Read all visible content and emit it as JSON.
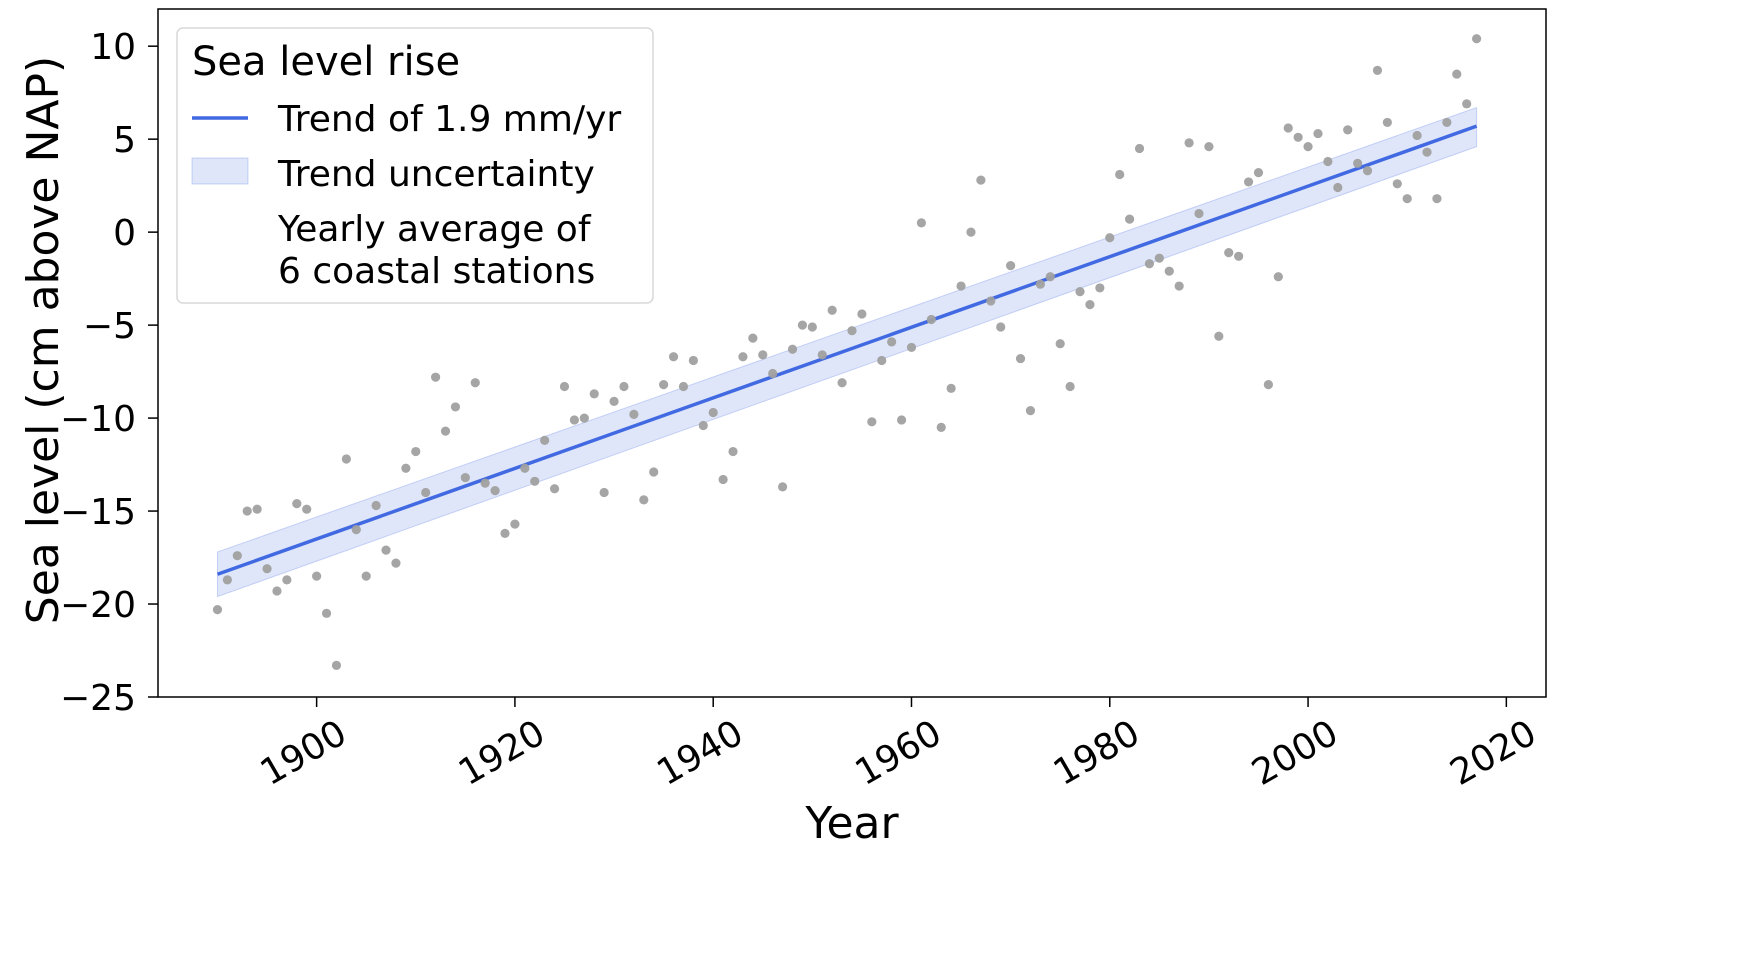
{
  "chart_data": {
    "type": "scatter",
    "xlabel": "Year",
    "ylabel": "Sea level (cm above NAP)",
    "xlim": [
      1884,
      2024
    ],
    "ylim": [
      -25,
      12
    ],
    "x_ticks": [
      1900,
      1920,
      1940,
      1960,
      1980,
      2000,
      2020
    ],
    "y_ticks": [
      10,
      5,
      0,
      -5,
      -10,
      -15,
      -20,
      -25
    ],
    "y_tick_labels": [
      "10",
      "5",
      "0",
      "−5",
      "−10",
      "−15",
      "−20",
      "−25"
    ],
    "grid": false,
    "legend": {
      "title": "Sea level rise",
      "position": "top-left",
      "entries": [
        {
          "label": "Trend of 1.9 mm/yr"
        },
        {
          "label": "Trend uncertainty"
        },
        {
          "label_lines": [
            "Yearly average of",
            "6 coastal stations"
          ]
        }
      ]
    },
    "trend": {
      "name": "Trend of 1.9 mm/yr",
      "x": [
        1890,
        2017
      ],
      "y": [
        -18.4,
        5.7
      ],
      "color": "#4169e1"
    },
    "band": {
      "name": "Trend uncertainty",
      "x": [
        1890,
        2017
      ],
      "upper": [
        -17.2,
        6.7
      ],
      "lower": [
        -19.6,
        4.6
      ],
      "color": "#4169e1",
      "opacity": 0.17
    },
    "points": {
      "name": "Yearly average of 6 coastal stations",
      "color": "#a0a0a0",
      "x": [
        1890,
        1891,
        1892,
        1893,
        1894,
        1895,
        1896,
        1897,
        1898,
        1899,
        1900,
        1901,
        1902,
        1903,
        1904,
        1905,
        1906,
        1907,
        1908,
        1909,
        1910,
        1911,
        1912,
        1913,
        1914,
        1915,
        1916,
        1917,
        1918,
        1919,
        1920,
        1921,
        1922,
        1923,
        1924,
        1925,
        1926,
        1927,
        1928,
        1929,
        1930,
        1931,
        1932,
        1933,
        1934,
        1935,
        1936,
        1937,
        1938,
        1939,
        1940,
        1941,
        1942,
        1943,
        1944,
        1945,
        1946,
        1947,
        1948,
        1949,
        1950,
        1951,
        1952,
        1953,
        1954,
        1955,
        1956,
        1957,
        1958,
        1959,
        1960,
        1961,
        1962,
        1963,
        1964,
        1965,
        1966,
        1967,
        1968,
        1969,
        1970,
        1971,
        1972,
        1973,
        1974,
        1975,
        1976,
        1977,
        1978,
        1979,
        1980,
        1981,
        1982,
        1983,
        1984,
        1985,
        1986,
        1987,
        1988,
        1989,
        1990,
        1991,
        1992,
        1993,
        1994,
        1995,
        1996,
        1997,
        1998,
        1999,
        2000,
        2001,
        2002,
        2003,
        2004,
        2005,
        2006,
        2007,
        2008,
        2009,
        2010,
        2011,
        2012,
        2013,
        2014,
        2015,
        2016,
        2017
      ],
      "y": [
        -20.3,
        -18.7,
        -17.4,
        -15.0,
        -14.9,
        -18.1,
        -19.3,
        -18.7,
        -14.6,
        -14.9,
        -18.5,
        -20.5,
        -23.3,
        -12.2,
        -16.0,
        -18.5,
        -14.7,
        -17.1,
        -17.8,
        -12.7,
        -11.8,
        -14.0,
        -7.8,
        -10.7,
        -9.4,
        -13.2,
        -8.1,
        -13.5,
        -13.9,
        -16.2,
        -15.7,
        -12.7,
        -13.4,
        -11.2,
        -13.8,
        -8.3,
        -10.1,
        -10.0,
        -8.7,
        -14.0,
        -9.1,
        -8.3,
        -9.8,
        -14.4,
        -12.9,
        -8.2,
        -6.7,
        -8.3,
        -6.9,
        -10.4,
        -9.7,
        -13.3,
        -11.8,
        -6.7,
        -5.7,
        -6.6,
        -7.6,
        -13.7,
        -6.3,
        -5.0,
        -5.1,
        -6.6,
        -4.2,
        -8.1,
        -5.3,
        -4.4,
        -10.2,
        -6.9,
        -5.9,
        -10.1,
        -6.2,
        0.5,
        -4.7,
        -10.5,
        -8.4,
        -2.9,
        0.0,
        2.8,
        -3.7,
        -5.1,
        -1.8,
        -6.8,
        -9.6,
        -2.8,
        -2.4,
        -6.0,
        -8.3,
        -3.2,
        -3.9,
        -3.0,
        -0.3,
        3.1,
        0.7,
        4.5,
        -1.7,
        -1.4,
        -2.1,
        -2.9,
        4.8,
        1.0,
        4.6,
        -5.6,
        -1.1,
        -1.3,
        2.7,
        3.2,
        -8.2,
        -2.4,
        5.6,
        5.1,
        4.6,
        5.3,
        3.8,
        2.4,
        5.5,
        3.7,
        3.3,
        8.7,
        5.9,
        2.6,
        1.8,
        5.2,
        4.3,
        1.8,
        5.9,
        8.5,
        6.9,
        10.4
      ]
    }
  }
}
